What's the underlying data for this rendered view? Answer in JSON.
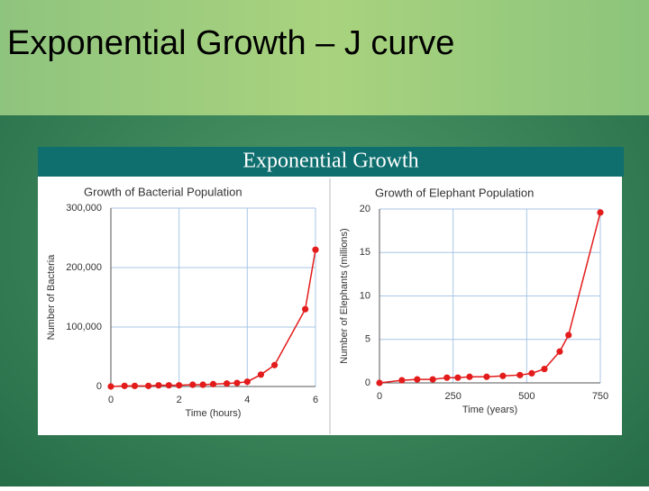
{
  "title": "Exponential Growth – J curve",
  "banner": "Exponential Growth",
  "chart_data": [
    {
      "type": "line",
      "title": "Growth of Bacterial Population",
      "x_label": "Time (hours)",
      "y_label": "Number of Bacteria",
      "x": [
        0,
        0.4,
        0.7,
        1.1,
        1.4,
        1.7,
        2,
        2.4,
        2.7,
        3,
        3.4,
        3.7,
        4,
        4.4,
        4.8,
        5.7,
        6
      ],
      "series": [
        {
          "color": "#e31b1b",
          "values": [
            0,
            1000,
            1000,
            1000,
            2000,
            2000,
            2000,
            3000,
            3000,
            4000,
            5000,
            6000,
            8000,
            20000,
            36000,
            130000,
            230000
          ]
        }
      ],
      "xlim": [
        0,
        6
      ],
      "xticks": [
        0,
        2,
        4,
        6
      ],
      "ylim": [
        0,
        300000
      ],
      "yticks": [
        0,
        {
          "value": 100000,
          "label": "100,000"
        },
        {
          "value": 200000,
          "label": "200,000"
        },
        {
          "value": 300000,
          "label": "300,000"
        }
      ],
      "grid": true
    },
    {
      "type": "line",
      "title": "Growth of Elephant Population",
      "x_label": "Time (years)",
      "y_label": "Number of Elephants (millions)",
      "x": [
        0,
        76,
        128,
        181,
        229,
        266,
        306,
        364,
        419,
        477,
        517,
        560,
        612,
        642,
        750
      ],
      "series": [
        {
          "color": "#e31b1b",
          "values": [
            0,
            0.3,
            0.4,
            0.4,
            0.6,
            0.6,
            0.7,
            0.7,
            0.8,
            0.9,
            1.1,
            1.6,
            3.6,
            5.5,
            19.6
          ]
        }
      ],
      "xlim": [
        0,
        750
      ],
      "xticks": [
        0,
        250,
        500,
        750
      ],
      "ylim": [
        0,
        20
      ],
      "yticks": [
        0,
        5,
        10,
        15,
        20
      ],
      "grid": true
    }
  ]
}
